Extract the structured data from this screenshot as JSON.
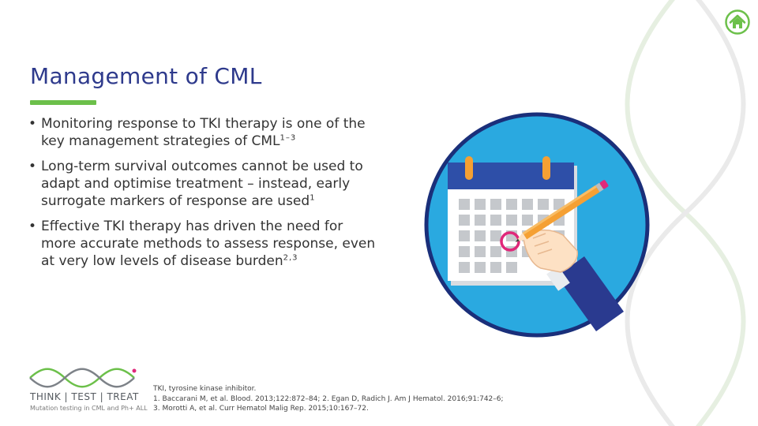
{
  "slide": {
    "title": "Management of CML",
    "accent_color": "#6cc04a",
    "title_color": "#2e3a8c"
  },
  "bullets": [
    {
      "bullet": "•",
      "text": "Monitoring response to TKI therapy is one of the key management strategies of CML",
      "ref": "1–3"
    },
    {
      "bullet": "•",
      "text": "Long-term survival outcomes cannot be used to adapt and optimise treatment – instead, early surrogate markers of response are used",
      "ref": "1"
    },
    {
      "bullet": "•",
      "text": "Effective TKI therapy has driven the need for more accurate methods to assess response, even at very low levels of disease burden",
      "ref": "2,3"
    }
  ],
  "home_button": {
    "icon": "home-icon",
    "color": "#6cc04a"
  },
  "illustration": {
    "icon": "calendar-hand-pencil-icon",
    "circle_color": "#2aa9e0"
  },
  "logo": {
    "brand": "THINK | TEST | TREAT",
    "tagline": "Mutation testing in CML and Ph+ ALL"
  },
  "footnotes": {
    "abbrev": "TKI, tyrosine kinase inhibitor.",
    "refs_line1": "1. Baccarani M, et al. Blood. 2013;122:872–84; 2. Egan D, Radich J. Am J Hematol. 2016;91:742–6;",
    "refs_line2": "3. Morotti A, et al. Curr Hematol Malig Rep. 2015;10:167–72."
  }
}
